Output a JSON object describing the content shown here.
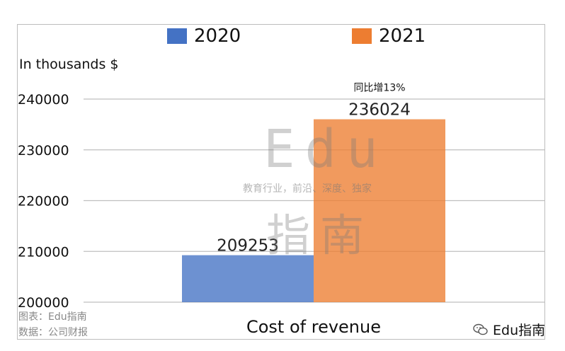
{
  "chart_data": {
    "type": "bar",
    "categories": [
      "Cost of revenue"
    ],
    "series": [
      {
        "name": "2020",
        "values": [
          209253
        ],
        "color": "#4472c4"
      },
      {
        "name": "2021",
        "values": [
          236024
        ],
        "color": "#ed7d31"
      }
    ],
    "xlabel": "Cost of revenue",
    "ylabel": "In thousands $",
    "ylim": [
      200000,
      240000
    ],
    "yticks": [
      200000,
      210000,
      220000,
      230000,
      240000
    ],
    "grid": true,
    "legend": "top-center",
    "annotations": [
      {
        "text": "同比增13%",
        "series": "2021"
      }
    ]
  },
  "legend": {
    "items": [
      "2020",
      "2021"
    ]
  },
  "source": {
    "line1": "图表：Edu指南",
    "line2": "数据：公司财报"
  },
  "watermark": {
    "logo": "Edu",
    "tagline": "教育行业，前沿、深度、独家",
    "chars": "指南"
  },
  "brand": {
    "name": "Edu指南",
    "icon": "wechat-icon"
  }
}
